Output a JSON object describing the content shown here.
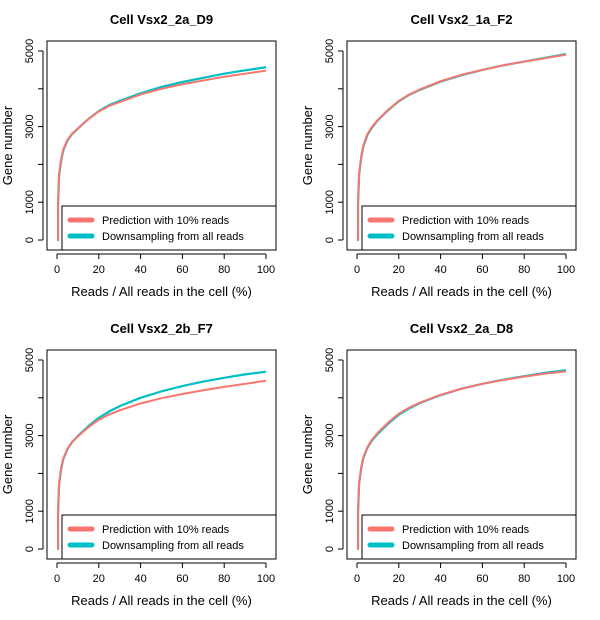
{
  "figure": {
    "colors": {
      "prediction": "#F8766D",
      "downsampling": "#00BFC4",
      "axis": "#000000"
    }
  },
  "chart_data": [
    {
      "type": "line",
      "title": "Cell Vsx2_2a_D9",
      "xlabel": "Reads / All reads in the cell (%)",
      "ylabel": "Gene number",
      "xlim": [
        0,
        100
      ],
      "ylim": [
        0,
        5000
      ],
      "x_ticks": [
        0,
        20,
        40,
        60,
        80,
        100
      ],
      "y_ticks": [
        0,
        1000,
        3000,
        5000
      ],
      "legend_position": "bottom-right",
      "series": [
        {
          "name": "Prediction with 10% reads",
          "color": "#F8766D",
          "x": [
            0.5,
            1,
            2,
            3,
            5,
            7,
            10,
            15,
            20,
            25,
            30,
            40,
            50,
            60,
            70,
            80,
            90,
            100
          ],
          "y": [
            1000,
            1750,
            2150,
            2400,
            2650,
            2800,
            2950,
            3200,
            3400,
            3550,
            3650,
            3850,
            4000,
            4120,
            4220,
            4320,
            4400,
            4480
          ]
        },
        {
          "name": "Downsampling from all reads",
          "color": "#00BFC4",
          "x": [
            0.5,
            1,
            2,
            3,
            5,
            7,
            10,
            15,
            20,
            25,
            30,
            40,
            50,
            60,
            70,
            80,
            90,
            100
          ],
          "y": [
            950,
            1700,
            2100,
            2370,
            2630,
            2790,
            2950,
            3200,
            3410,
            3570,
            3680,
            3880,
            4050,
            4180,
            4290,
            4400,
            4490,
            4570
          ]
        }
      ]
    },
    {
      "type": "line",
      "title": "Cell Vsx2_1a_F2",
      "xlabel": "Reads / All reads in the cell (%)",
      "ylabel": "Gene number",
      "xlim": [
        0,
        100
      ],
      "ylim": [
        0,
        5000
      ],
      "x_ticks": [
        0,
        20,
        40,
        60,
        80,
        100
      ],
      "y_ticks": [
        0,
        1000,
        3000,
        5000
      ],
      "legend_position": "bottom-right",
      "series": [
        {
          "name": "Prediction with 10% reads",
          "color": "#F8766D",
          "x": [
            0.5,
            1,
            2,
            3,
            5,
            7,
            10,
            15,
            20,
            25,
            30,
            40,
            50,
            60,
            70,
            80,
            90,
            100
          ],
          "y": [
            1000,
            1750,
            2200,
            2500,
            2800,
            2980,
            3180,
            3450,
            3680,
            3850,
            3980,
            4200,
            4370,
            4500,
            4620,
            4720,
            4810,
            4900
          ]
        },
        {
          "name": "Downsampling from all reads",
          "color": "#00BFC4",
          "x": [
            0.5,
            1,
            2,
            3,
            5,
            7,
            10,
            15,
            20,
            25,
            30,
            40,
            50,
            60,
            70,
            80,
            90,
            100
          ],
          "y": [
            950,
            1720,
            2170,
            2470,
            2780,
            2960,
            3170,
            3440,
            3670,
            3840,
            3970,
            4190,
            4360,
            4500,
            4620,
            4720,
            4820,
            4920
          ]
        }
      ]
    },
    {
      "type": "line",
      "title": "Cell Vsx2_2b_F7",
      "xlabel": "Reads / All reads in the cell (%)",
      "ylabel": "Gene number",
      "xlim": [
        0,
        100
      ],
      "ylim": [
        0,
        5000
      ],
      "x_ticks": [
        0,
        20,
        40,
        60,
        80,
        100
      ],
      "y_ticks": [
        0,
        1000,
        3000,
        5000
      ],
      "legend_position": "bottom-right",
      "series": [
        {
          "name": "Prediction with 10% reads",
          "color": "#F8766D",
          "x": [
            0.5,
            1,
            2,
            3,
            5,
            7,
            10,
            15,
            20,
            25,
            30,
            40,
            50,
            60,
            70,
            80,
            90,
            100
          ],
          "y": [
            1000,
            1750,
            2150,
            2400,
            2650,
            2820,
            2980,
            3220,
            3420,
            3560,
            3670,
            3850,
            3990,
            4100,
            4200,
            4290,
            4370,
            4450
          ]
        },
        {
          "name": "Downsampling from all reads",
          "color": "#00BFC4",
          "x": [
            0.5,
            1,
            2,
            3,
            5,
            7,
            10,
            15,
            20,
            25,
            30,
            40,
            50,
            60,
            70,
            80,
            90,
            100
          ],
          "y": [
            950,
            1700,
            2120,
            2380,
            2640,
            2810,
            2990,
            3250,
            3470,
            3640,
            3780,
            4000,
            4170,
            4310,
            4430,
            4530,
            4620,
            4690
          ]
        }
      ]
    },
    {
      "type": "line",
      "title": "Cell Vsx2_2a_D8",
      "xlabel": "Reads / All reads in the cell (%)",
      "ylabel": "Gene number",
      "xlim": [
        0,
        100
      ],
      "ylim": [
        0,
        5000
      ],
      "x_ticks": [
        0,
        20,
        40,
        60,
        80,
        100
      ],
      "y_ticks": [
        0,
        1000,
        3000,
        5000
      ],
      "legend_position": "bottom-right",
      "series": [
        {
          "name": "Prediction with 10% reads",
          "color": "#F8766D",
          "x": [
            0.5,
            1,
            2,
            3,
            5,
            7,
            10,
            15,
            20,
            25,
            30,
            40,
            50,
            60,
            70,
            80,
            90,
            100
          ],
          "y": [
            1000,
            1750,
            2150,
            2420,
            2700,
            2880,
            3080,
            3350,
            3580,
            3740,
            3870,
            4080,
            4240,
            4370,
            4470,
            4560,
            4640,
            4700
          ]
        },
        {
          "name": "Downsampling from all reads",
          "color": "#00BFC4",
          "x": [
            0.5,
            1,
            2,
            3,
            5,
            7,
            10,
            15,
            20,
            25,
            30,
            40,
            50,
            60,
            70,
            80,
            90,
            100
          ],
          "y": [
            950,
            1720,
            2130,
            2400,
            2680,
            2860,
            3050,
            3320,
            3550,
            3720,
            3860,
            4070,
            4240,
            4370,
            4480,
            4570,
            4660,
            4730
          ]
        }
      ]
    }
  ]
}
